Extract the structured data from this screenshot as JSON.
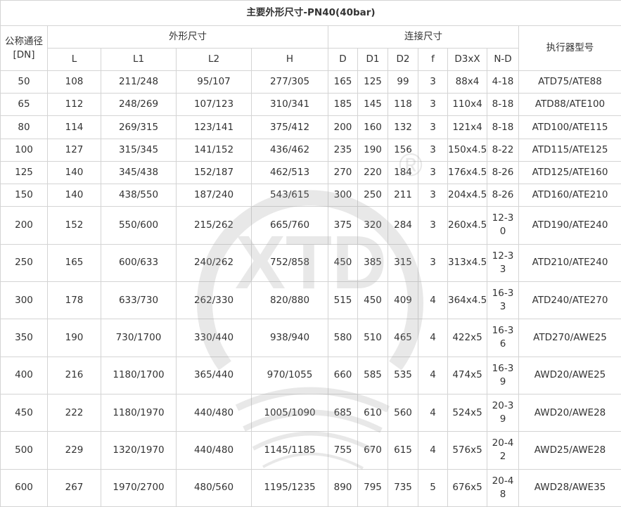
{
  "table": {
    "title": "主要外形尺寸-PN40(40bar)",
    "headers": {
      "dn": "公称通径[DN]",
      "outline_group": "外形尺寸",
      "connection_group": "连接尺寸",
      "actuator": "执行器型号",
      "outline_cols": [
        "L",
        "L1",
        "L2",
        "H"
      ],
      "connection_cols": [
        "D",
        "D1",
        "D2",
        "f",
        "D3xX",
        "N-D"
      ]
    },
    "rows": [
      [
        "50",
        "108",
        "211/248",
        "95/107",
        "277/305",
        "165",
        "125",
        "99",
        "3",
        "88x4",
        "4-18",
        "ATD75/ATE88"
      ],
      [
        "65",
        "112",
        "248/269",
        "107/123",
        "310/341",
        "185",
        "145",
        "118",
        "3",
        "110x4",
        "8-18",
        "ATD88/ATE100"
      ],
      [
        "80",
        "114",
        "269/315",
        "123/141",
        "375/412",
        "200",
        "160",
        "132",
        "3",
        "121x4",
        "8-18",
        "ATD100/ATE115"
      ],
      [
        "100",
        "127",
        "315/345",
        "141/152",
        "436/462",
        "235",
        "190",
        "156",
        "3",
        "150x4.5",
        "8-22",
        "ATD115/ATE125"
      ],
      [
        "125",
        "140",
        "345/438",
        "152/187",
        "462/513",
        "270",
        "220",
        "184",
        "3",
        "176x4.5",
        "8-26",
        "ATD125/ATE160"
      ],
      [
        "150",
        "140",
        "438/550",
        "187/240",
        "543/615",
        "300",
        "250",
        "211",
        "3",
        "204x4.5",
        "8-26",
        "ATD160/ATE210"
      ],
      [
        "200",
        "152",
        "550/600",
        "215/262",
        "665/760",
        "375",
        "320",
        "284",
        "3",
        "260x4.5",
        "12-30",
        "ATD190/ATE240"
      ],
      [
        "250",
        "165",
        "600/633",
        "240/262",
        "752/858",
        "450",
        "385",
        "315",
        "3",
        "313x4.5",
        "12-33",
        "ATD210/ATE240"
      ],
      [
        "300",
        "178",
        "633/730",
        "262/330",
        "820/880",
        "515",
        "450",
        "409",
        "4",
        "364x4.5",
        "16-33",
        "ATD240/ATE270"
      ],
      [
        "350",
        "190",
        "730/1700",
        "330/440",
        "938/940",
        "580",
        "510",
        "465",
        "4",
        "422x5",
        "16-36",
        "ATD270/AWE25"
      ],
      [
        "400",
        "216",
        "1180/1700",
        "365/440",
        "970/1055",
        "660",
        "585",
        "535",
        "4",
        "474x5",
        "16-39",
        "AWD20/AWE25"
      ],
      [
        "450",
        "222",
        "1180/1970",
        "440/480",
        "1005/1090",
        "685",
        "610",
        "560",
        "4",
        "524x5",
        "20-39",
        "AWD20/AWE28"
      ],
      [
        "500",
        "229",
        "1320/1970",
        "440/480",
        "1145/1185",
        "755",
        "670",
        "615",
        "4",
        "576x5",
        "20-42",
        "AWD25/AWE28"
      ],
      [
        "600",
        "267",
        "1970/2700",
        "480/560",
        "1195/1235",
        "890",
        "795",
        "735",
        "5",
        "676x5",
        "20-48",
        "AWD28/AWE35"
      ]
    ]
  },
  "watermark": {
    "logo_text": "XTD",
    "registered_mark": "®",
    "color": "#9a9a9a"
  }
}
